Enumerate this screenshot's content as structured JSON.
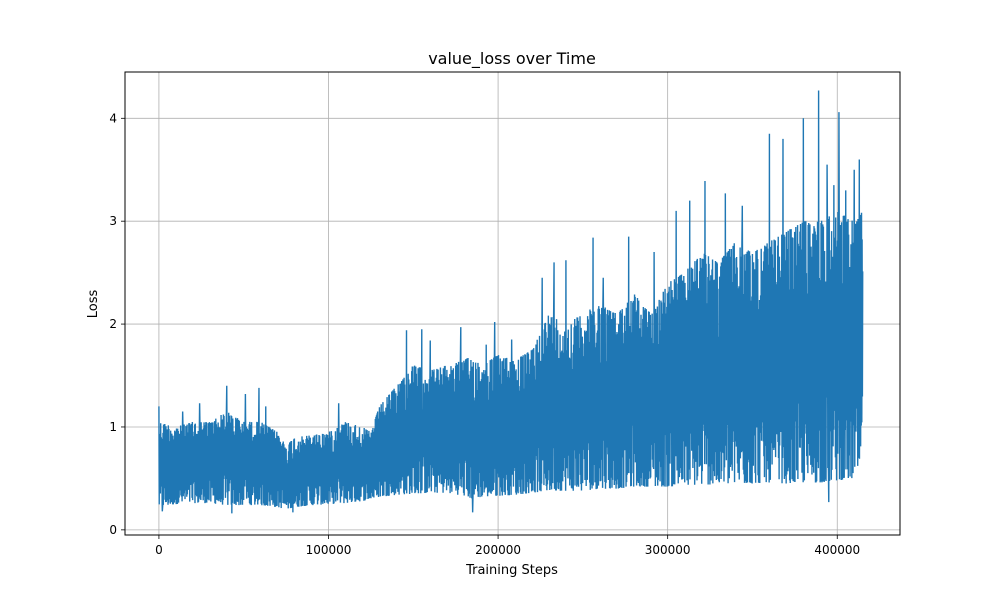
{
  "chart_data": {
    "type": "line",
    "title": "value_loss over Time",
    "xlabel": "Training Steps",
    "ylabel": "Loss",
    "xlim": [
      -20000,
      437000
    ],
    "ylim": [
      -0.05,
      4.45
    ],
    "x_ticks": [
      0,
      100000,
      200000,
      300000,
      400000
    ],
    "y_ticks": [
      0,
      1,
      2,
      3,
      4
    ],
    "grid": true,
    "legend": "none",
    "line_color": "#1f77b4",
    "x_max": 415000,
    "envelope": {
      "x": [
        0,
        10000,
        20000,
        30000,
        40000,
        50000,
        60000,
        70000,
        75000,
        80000,
        90000,
        100000,
        110000,
        120000,
        125000,
        130000,
        140000,
        150000,
        160000,
        170000,
        180000,
        185000,
        190000,
        200000,
        210000,
        220000,
        230000,
        240000,
        250000,
        260000,
        270000,
        280000,
        290000,
        300000,
        310000,
        320000,
        330000,
        340000,
        350000,
        360000,
        370000,
        380000,
        390000,
        400000,
        410000,
        415000
      ],
      "upper": [
        1.05,
        1.0,
        1.05,
        1.05,
        1.15,
        1.05,
        1.05,
        0.95,
        0.82,
        0.9,
        0.92,
        0.95,
        1.05,
        1.0,
        0.95,
        1.2,
        1.4,
        1.6,
        1.55,
        1.6,
        1.65,
        1.7,
        1.6,
        1.7,
        1.65,
        1.75,
        2.1,
        2.0,
        2.1,
        2.2,
        2.1,
        2.3,
        2.1,
        2.4,
        2.5,
        2.7,
        2.6,
        2.8,
        2.7,
        2.8,
        2.9,
        3.0,
        3.0,
        3.1,
        3.0,
        3.1
      ],
      "lower": [
        0.22,
        0.25,
        0.26,
        0.26,
        0.24,
        0.24,
        0.24,
        0.22,
        0.2,
        0.22,
        0.24,
        0.25,
        0.26,
        0.28,
        0.3,
        0.32,
        0.34,
        0.35,
        0.36,
        0.36,
        0.33,
        0.3,
        0.32,
        0.33,
        0.34,
        0.36,
        0.38,
        0.38,
        0.38,
        0.4,
        0.4,
        0.42,
        0.42,
        0.42,
        0.43,
        0.44,
        0.44,
        0.45,
        0.45,
        0.46,
        0.45,
        0.46,
        0.46,
        0.48,
        0.5,
        0.62
      ]
    },
    "spikes": [
      {
        "x": 0,
        "y": 1.2
      },
      {
        "x": 14000,
        "y": 1.15
      },
      {
        "x": 24000,
        "y": 1.23
      },
      {
        "x": 40000,
        "y": 1.4
      },
      {
        "x": 43000,
        "y": 1.45
      },
      {
        "x": 51000,
        "y": 1.32
      },
      {
        "x": 59000,
        "y": 1.38
      },
      {
        "x": 63000,
        "y": 1.2
      },
      {
        "x": 106000,
        "y": 1.23
      },
      {
        "x": 146000,
        "y": 1.94
      },
      {
        "x": 155000,
        "y": 1.95
      },
      {
        "x": 160000,
        "y": 1.84
      },
      {
        "x": 178000,
        "y": 1.97
      },
      {
        "x": 193000,
        "y": 1.8
      },
      {
        "x": 198000,
        "y": 2.02
      },
      {
        "x": 208000,
        "y": 1.85
      },
      {
        "x": 226000,
        "y": 2.45
      },
      {
        "x": 233000,
        "y": 2.6
      },
      {
        "x": 240000,
        "y": 2.62
      },
      {
        "x": 256000,
        "y": 2.84
      },
      {
        "x": 262000,
        "y": 2.45
      },
      {
        "x": 277000,
        "y": 2.85
      },
      {
        "x": 292000,
        "y": 2.7
      },
      {
        "x": 305000,
        "y": 3.1
      },
      {
        "x": 313000,
        "y": 3.2
      },
      {
        "x": 322000,
        "y": 3.39
      },
      {
        "x": 334000,
        "y": 3.27
      },
      {
        "x": 344000,
        "y": 3.15
      },
      {
        "x": 360000,
        "y": 3.85
      },
      {
        "x": 368000,
        "y": 3.8
      },
      {
        "x": 380000,
        "y": 4.0
      },
      {
        "x": 389000,
        "y": 4.27
      },
      {
        "x": 394000,
        "y": 3.55
      },
      {
        "x": 398000,
        "y": 3.35
      },
      {
        "x": 401000,
        "y": 4.06
      },
      {
        "x": 405000,
        "y": 3.3
      },
      {
        "x": 410000,
        "y": 3.5
      },
      {
        "x": 413000,
        "y": 3.6
      }
    ],
    "dips": [
      {
        "x": 2000,
        "y": 0.18
      },
      {
        "x": 43000,
        "y": 0.16
      },
      {
        "x": 79000,
        "y": 0.17
      },
      {
        "x": 185000,
        "y": 0.17
      },
      {
        "x": 395000,
        "y": 0.27
      }
    ]
  }
}
